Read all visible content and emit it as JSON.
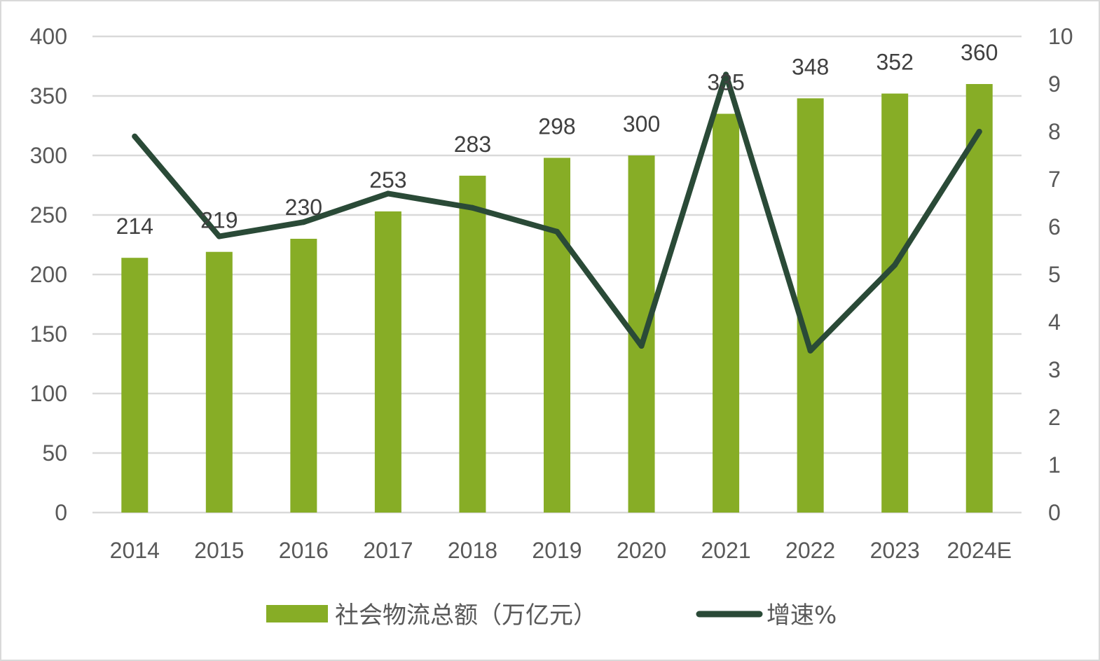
{
  "chart_data": {
    "type": "bar",
    "categories": [
      "2014",
      "2015",
      "2016",
      "2017",
      "2018",
      "2019",
      "2020",
      "2021",
      "2022",
      "2023",
      "2024E"
    ],
    "series": [
      {
        "name": "社会物流总额（万亿元）",
        "type": "bar",
        "axis": "left",
        "color": "#87ad26",
        "values": [
          214,
          219,
          230,
          253,
          283,
          298,
          300,
          335,
          348,
          352,
          360
        ],
        "data_labels": [
          "214",
          "219",
          "230",
          "253",
          "283",
          "298",
          "300",
          "335",
          "348",
          "352",
          "360"
        ]
      },
      {
        "name": "增速%",
        "type": "line",
        "axis": "right",
        "color": "#2a4a37",
        "values": [
          7.9,
          5.8,
          6.1,
          6.7,
          6.4,
          5.9,
          3.5,
          9.2,
          3.4,
          5.2,
          8.0
        ]
      }
    ],
    "y_left": {
      "range": [
        0,
        400
      ],
      "ticks": [
        "0",
        "50",
        "100",
        "150",
        "200",
        "250",
        "300",
        "350",
        "400"
      ]
    },
    "y_right": {
      "range": [
        0,
        10
      ],
      "ticks": [
        "0",
        "1",
        "2",
        "3",
        "4",
        "5",
        "6",
        "7",
        "8",
        "9",
        "10"
      ]
    },
    "title": "",
    "xlabel": "",
    "ylabel": "",
    "grid": true,
    "legend_position": "bottom",
    "gridline_color": "#d9d9d9"
  }
}
